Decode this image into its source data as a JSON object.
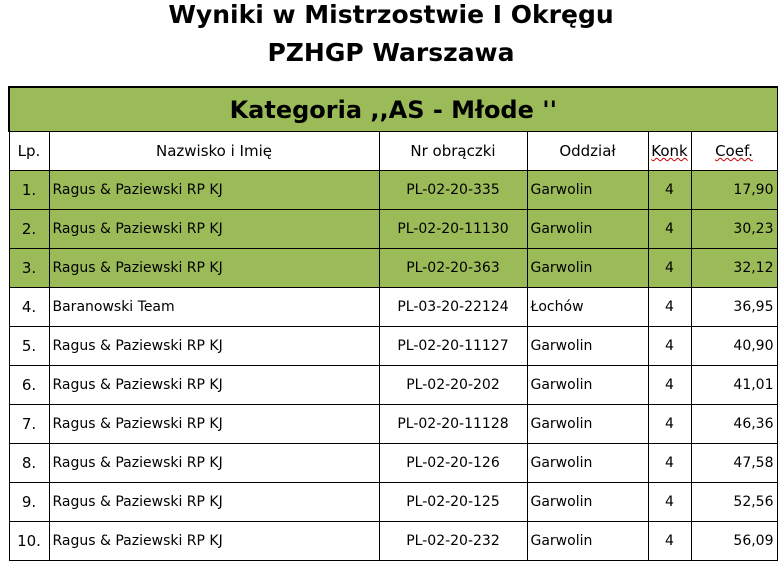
{
  "title_line1": "Wyniki w Mistrzostwie I Okręgu",
  "title_line2": "PZHGP Warszawa",
  "category": "Kategoria ,,AS - Młode ''",
  "highlight_color": "#9BBB59",
  "columns": [
    "Lp.",
    "Nazwisko i Imię",
    "Nr obrączki",
    "Oddział",
    "Konk",
    "Coef."
  ],
  "rows": [
    {
      "lp": "1.",
      "name": "Ragus & Paziewski RP KJ",
      "ring": "PL-02-20-335",
      "branch": "Garwolin",
      "konk": "4",
      "coef": "17,90",
      "highlight": true
    },
    {
      "lp": "2.",
      "name": "Ragus & Paziewski RP KJ",
      "ring": "PL-02-20-11130",
      "branch": "Garwolin",
      "konk": "4",
      "coef": "30,23",
      "highlight": true
    },
    {
      "lp": "3.",
      "name": "Ragus & Paziewski RP KJ",
      "ring": "PL-02-20-363",
      "branch": "Garwolin",
      "konk": "4",
      "coef": "32,12",
      "highlight": true
    },
    {
      "lp": "4.",
      "name": "Baranowski Team",
      "ring": "PL-03-20-22124",
      "branch": "Łochów",
      "konk": "4",
      "coef": "36,95",
      "highlight": false
    },
    {
      "lp": "5.",
      "name": "Ragus & Paziewski RP KJ",
      "ring": "PL-02-20-11127",
      "branch": "Garwolin",
      "konk": "4",
      "coef": "40,90",
      "highlight": false
    },
    {
      "lp": "6.",
      "name": "Ragus & Paziewski RP KJ",
      "ring": "PL-02-20-202",
      "branch": "Garwolin",
      "konk": "4",
      "coef": "41,01",
      "highlight": false
    },
    {
      "lp": "7.",
      "name": "Ragus & Paziewski RP KJ",
      "ring": "PL-02-20-11128",
      "branch": "Garwolin",
      "konk": "4",
      "coef": "46,36",
      "highlight": false
    },
    {
      "lp": "8.",
      "name": "Ragus & Paziewski RP KJ",
      "ring": "PL-02-20-126",
      "branch": "Garwolin",
      "konk": "4",
      "coef": "47,58",
      "highlight": false
    },
    {
      "lp": "9.",
      "name": "Ragus & Paziewski RP KJ",
      "ring": "PL-02-20-125",
      "branch": "Garwolin",
      "konk": "4",
      "coef": "52,56",
      "highlight": false
    },
    {
      "lp": "10.",
      "name": "Ragus & Paziewski RP KJ",
      "ring": "PL-02-20-232",
      "branch": "Garwolin",
      "konk": "4",
      "coef": "56,09",
      "highlight": false
    }
  ]
}
